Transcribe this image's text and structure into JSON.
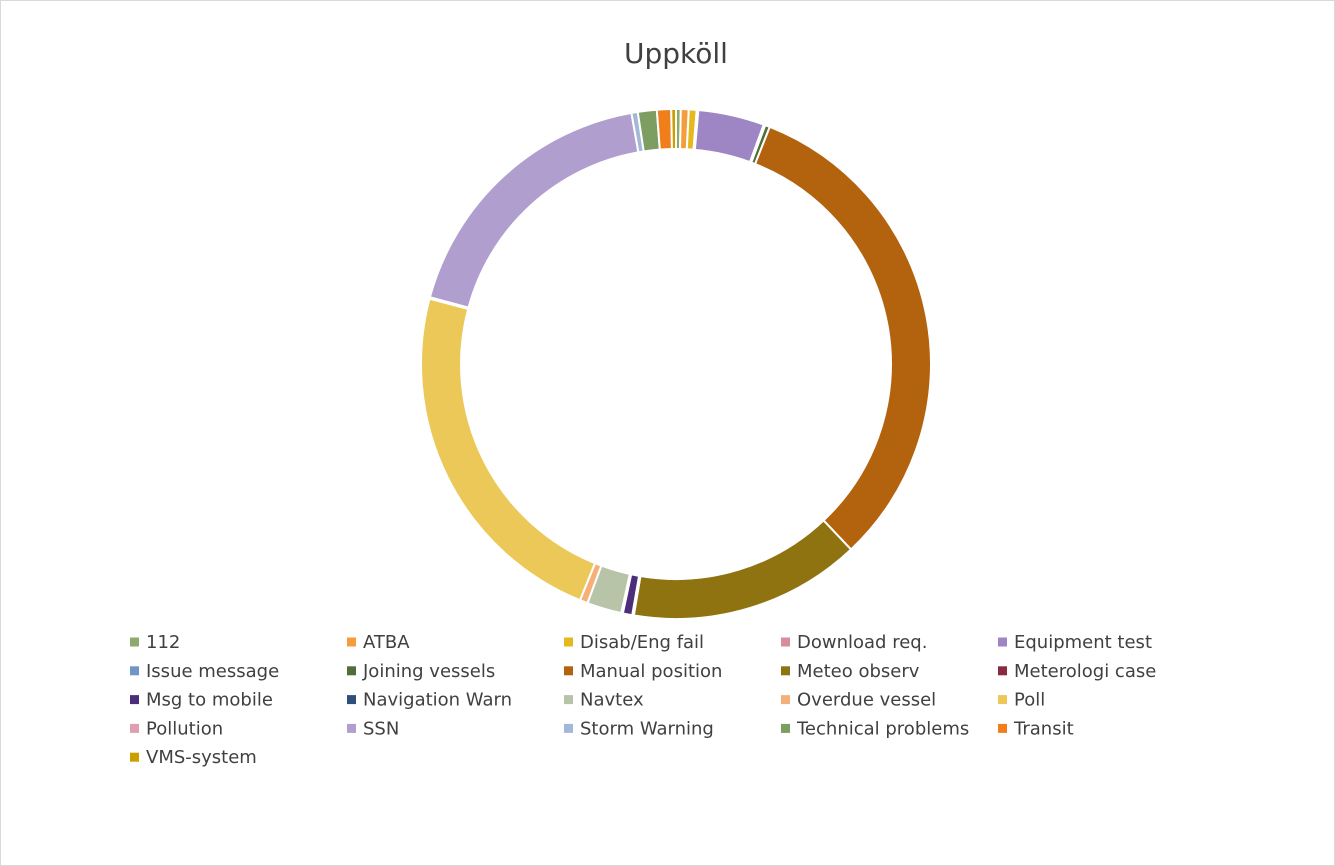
{
  "chart_data": {
    "type": "donut",
    "title": "Uppköll",
    "categories": [
      "112",
      "ATBA",
      "Disab/Eng fail",
      "Download req.",
      "Equipment test",
      "Issue message",
      "Joining vessels",
      "Manual position",
      "Meteo observ",
      "Meterologi case",
      "Msg to mobile",
      "Navigation Warn",
      "Navtex",
      "Overdue vessel",
      "Poll",
      "Pollution",
      "SSN",
      "Storm Warning",
      "Technical problems",
      "Transit",
      "VMS-system"
    ],
    "values": [
      0.3,
      0.5,
      0.5,
      0.1,
      4.2,
      0.1,
      0.3,
      32,
      14.7,
      0.1,
      0.6,
      0.1,
      2.2,
      0.5,
      23,
      0.1,
      18,
      0.4,
      1.2,
      0.9,
      0.3
    ],
    "colors": [
      "#8faa6e",
      "#f59d3d",
      "#e6b820",
      "#d98c9c",
      "#9e86c4",
      "#6f96c4",
      "#4f6e3a",
      "#b3620d",
      "#8f7310",
      "#8a2a3e",
      "#4b2d7a",
      "#2e4f7a",
      "#b7c4a8",
      "#f5b07a",
      "#ebc857",
      "#dda0b0",
      "#b09ecf",
      "#a3b8d6",
      "#7d9e63",
      "#f07e1a",
      "#c9a000"
    ],
    "legend": "bottom"
  }
}
